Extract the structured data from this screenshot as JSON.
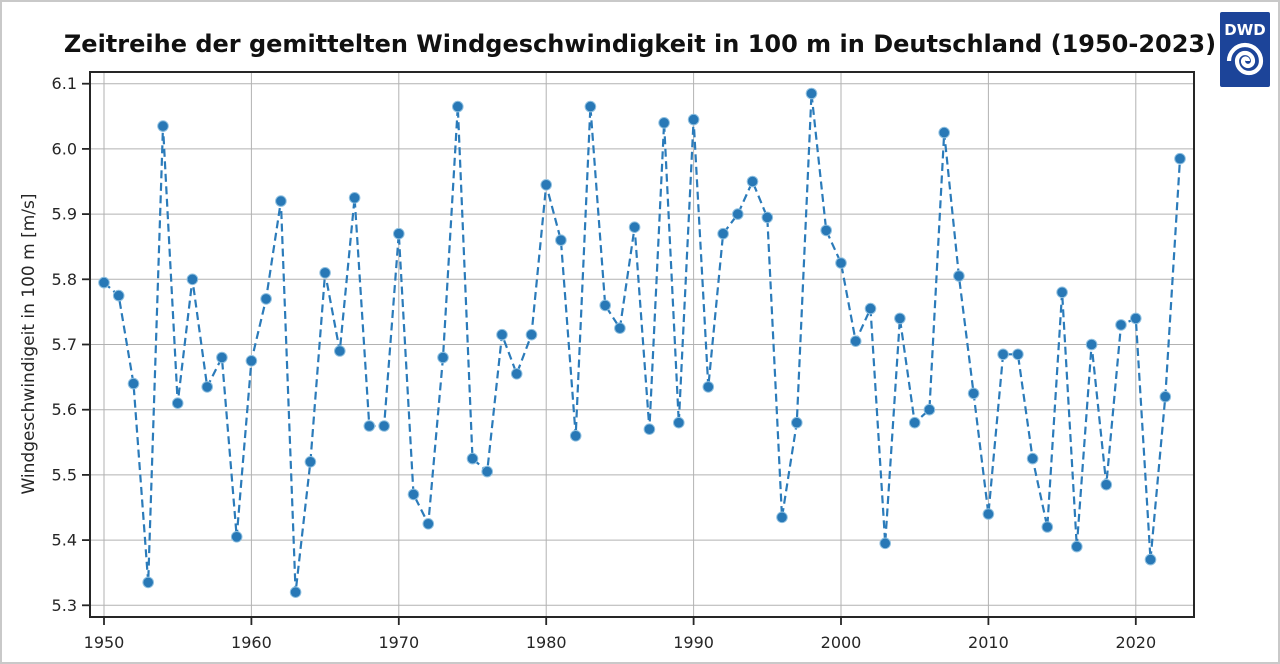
{
  "logo": {
    "text": "DWD",
    "color": "#1c4499"
  },
  "chart_data": {
    "type": "line",
    "title": "Zeitreihe der gemittelten Windgeschwindigkeit in 100 m in Deutschland (1950-2023)",
    "xlabel": "",
    "ylabel": "Windgeschwindigeit in 100 m [m/s]",
    "line_style": "dashed",
    "marker": "circle",
    "line_color": "#2b7bba",
    "marker_color": "#2878b6",
    "marker_edge": "#8fc0e0",
    "grid_color": "#b2b2b2",
    "grid": true,
    "legend": "none",
    "xlim": [
      1949.05,
      2023.95
    ],
    "ylim": [
      5.282,
      6.118
    ],
    "xticks": [
      1950,
      1960,
      1970,
      1980,
      1990,
      2000,
      2010,
      2020
    ],
    "yticks": [
      5.3,
      5.4,
      5.5,
      5.6,
      5.7,
      5.8,
      5.9,
      6.0,
      6.1
    ],
    "x": [
      1950,
      1951,
      1952,
      1953,
      1954,
      1955,
      1956,
      1957,
      1958,
      1959,
      1960,
      1961,
      1962,
      1963,
      1964,
      1965,
      1966,
      1967,
      1968,
      1969,
      1970,
      1971,
      1972,
      1973,
      1974,
      1975,
      1976,
      1977,
      1978,
      1979,
      1980,
      1981,
      1982,
      1983,
      1984,
      1985,
      1986,
      1987,
      1988,
      1989,
      1990,
      1991,
      1992,
      1993,
      1994,
      1995,
      1996,
      1997,
      1998,
      1999,
      2000,
      2001,
      2002,
      2003,
      2004,
      2005,
      2006,
      2007,
      2008,
      2009,
      2010,
      2011,
      2012,
      2013,
      2014,
      2015,
      2016,
      2017,
      2018,
      2019,
      2020,
      2021,
      2022,
      2023
    ],
    "values": [
      5.795,
      5.775,
      5.64,
      5.335,
      6.035,
      5.61,
      5.8,
      5.635,
      5.68,
      5.405,
      5.675,
      5.77,
      5.92,
      5.32,
      5.52,
      5.81,
      5.69,
      5.925,
      5.575,
      5.575,
      5.87,
      5.47,
      5.425,
      5.68,
      6.065,
      5.525,
      5.505,
      5.715,
      5.655,
      5.715,
      5.945,
      5.86,
      5.56,
      6.065,
      5.76,
      5.725,
      5.88,
      5.57,
      6.04,
      5.58,
      6.045,
      5.635,
      5.87,
      5.9,
      5.95,
      5.895,
      5.435,
      5.58,
      6.085,
      5.875,
      5.825,
      5.705,
      5.755,
      5.395,
      5.74,
      5.58,
      5.6,
      6.025,
      5.805,
      5.625,
      5.44,
      5.685,
      5.685,
      5.525,
      5.42,
      5.78,
      5.39,
      5.7,
      5.485,
      5.73,
      5.74,
      5.37,
      5.62,
      5.985
    ]
  }
}
